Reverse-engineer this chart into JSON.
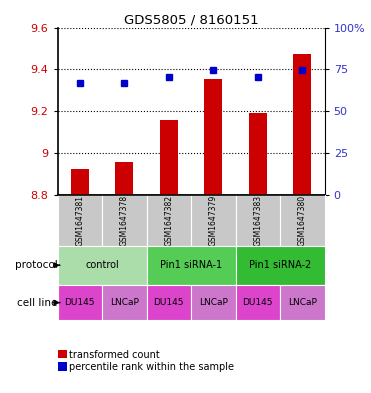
{
  "title": "GDS5805 / 8160151",
  "samples": [
    "GSM1647381",
    "GSM1647378",
    "GSM1647382",
    "GSM1647379",
    "GSM1647383",
    "GSM1647380"
  ],
  "bar_values": [
    8.92,
    8.955,
    9.155,
    9.355,
    9.19,
    9.475
  ],
  "bar_bottom": 8.8,
  "dot_values": [
    9.335,
    9.335,
    9.365,
    9.395,
    9.365,
    9.395
  ],
  "ylim_left": [
    8.8,
    9.6
  ],
  "ylim_right": [
    0,
    100
  ],
  "yticks_left": [
    8.8,
    9.0,
    9.2,
    9.4,
    9.6
  ],
  "yticks_right": [
    0,
    25,
    50,
    75,
    100
  ],
  "ytick_labels_right": [
    "0",
    "25",
    "50",
    "75",
    "100%"
  ],
  "bar_color": "#cc0000",
  "dot_color": "#0000cc",
  "protocol_groups": [
    {
      "label": "control",
      "cols": [
        0,
        1
      ],
      "color": "#aaddaa"
    },
    {
      "label": "Pin1 siRNA-1",
      "cols": [
        2,
        3
      ],
      "color": "#55cc55"
    },
    {
      "label": "Pin1 siRNA-2",
      "cols": [
        4,
        5
      ],
      "color": "#33bb33"
    }
  ],
  "cell_line_groups": [
    {
      "label": "DU145",
      "col": 0,
      "color": "#dd44cc"
    },
    {
      "label": "LNCaP",
      "col": 1,
      "color": "#cc77cc"
    },
    {
      "label": "DU145",
      "col": 2,
      "color": "#dd44cc"
    },
    {
      "label": "LNCaP",
      "col": 3,
      "color": "#cc77cc"
    },
    {
      "label": "DU145",
      "col": 4,
      "color": "#dd44cc"
    },
    {
      "label": "LNCaP",
      "col": 5,
      "color": "#cc77cc"
    }
  ],
  "legend_red_label": "transformed count",
  "legend_blue_label": "percentile rank within the sample",
  "protocol_label": "protocol",
  "cell_line_label": "cell line",
  "sample_bg_color": "#c8c8c8",
  "left_axis_color": "#cc0000",
  "right_axis_color": "#3333cc",
  "bar_width": 0.4,
  "n_samples": 6
}
